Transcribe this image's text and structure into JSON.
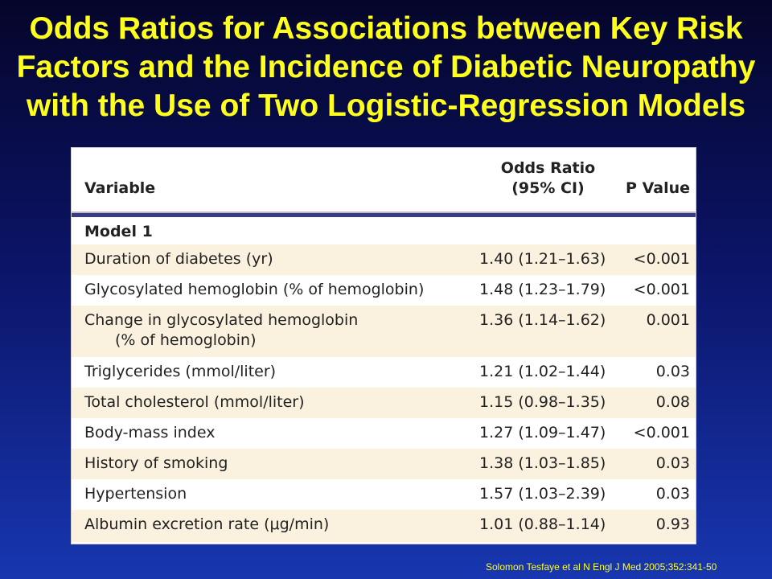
{
  "slide": {
    "title": "Odds Ratios for Associations between Key Risk Factors and the Incidence of Diabetic Neuropathy with the Use of Two Logistic-Regression Models",
    "citation": "Solomon Tesfaye et al N Engl J Med 2005;352:341-50"
  },
  "table": {
    "headers": {
      "variable": "Variable",
      "odds_ratio_line1": "Odds Ratio",
      "odds_ratio_line2": "(95% CI)",
      "p_value": "P Value"
    },
    "model_label": "Model 1",
    "rows": [
      {
        "variable": "Duration of diabetes (yr)",
        "variable_cont": "",
        "odds_ratio": "1.40 (1.21–1.63)",
        "p_value": "<0.001"
      },
      {
        "variable": "Glycosylated hemoglobin (% of hemoglobin)",
        "variable_cont": "",
        "odds_ratio": "1.48 (1.23–1.79)",
        "p_value": "<0.001"
      },
      {
        "variable": "Change in glycosylated hemoglobin",
        "variable_cont": "(% of hemoglobin)",
        "odds_ratio": "1.36 (1.14–1.62)",
        "p_value": "0.001"
      },
      {
        "variable": "Triglycerides (mmol/liter)",
        "variable_cont": "",
        "odds_ratio": "1.21 (1.02–1.44)",
        "p_value": "0.03"
      },
      {
        "variable": "Total cholesterol (mmol/liter)",
        "variable_cont": "",
        "odds_ratio": "1.15 (0.98–1.35)",
        "p_value": "0.08"
      },
      {
        "variable": "Body-mass index",
        "variable_cont": "",
        "odds_ratio": "1.27 (1.09–1.47)",
        "p_value": "<0.001"
      },
      {
        "variable": "History of smoking",
        "variable_cont": "",
        "odds_ratio": "1.38 (1.03–1.85)",
        "p_value": "0.03"
      },
      {
        "variable": "Hypertension",
        "variable_cont": "",
        "odds_ratio": "1.57 (1.03–2.39)",
        "p_value": "0.03"
      },
      {
        "variable": "Albumin excretion rate (μg/min)",
        "variable_cont": "",
        "odds_ratio": "1.01 (0.88–1.14)",
        "p_value": "0.93"
      }
    ]
  }
}
